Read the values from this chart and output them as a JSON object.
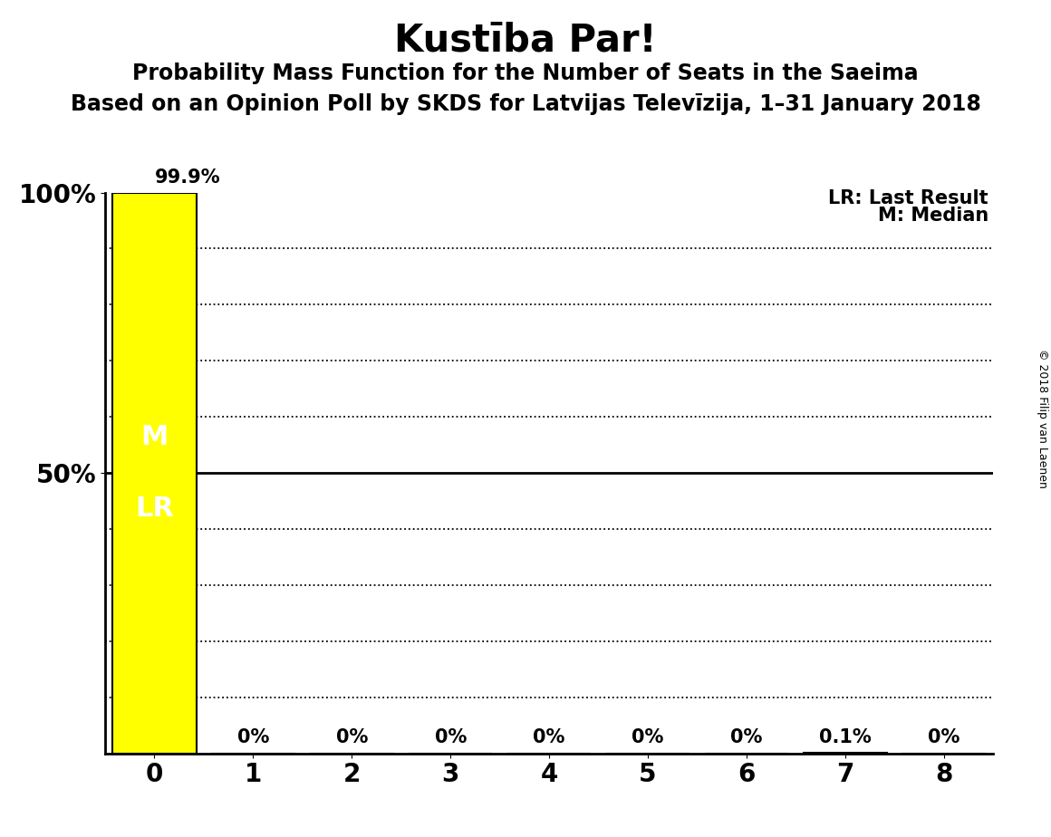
{
  "title": "Kustība Par!",
  "subtitle1": "Probability Mass Function for the Number of Seats in the Saeima",
  "subtitle2": "Based on an Opinion Poll by SKDS for Latvijas Televīzija, 1–31 January 2018",
  "copyright": "© 2018 Filip van Laenen",
  "x_values": [
    0,
    1,
    2,
    3,
    4,
    5,
    6,
    7,
    8
  ],
  "bar_values": [
    0.999,
    0.0,
    0.0,
    0.0,
    0.0,
    0.0,
    0.0,
    0.001,
    0.0
  ],
  "bar_labels": [
    "99.9%",
    "0%",
    "0%",
    "0%",
    "0%",
    "0%",
    "0%",
    "0.1%",
    "0%"
  ],
  "bar_color": "#FFFF00",
  "bar_edge_color": "#000000",
  "median_label": "M",
  "last_result_label": "LR",
  "legend_lr": "LR: Last Result",
  "legend_m": "M: Median",
  "ylim": [
    0,
    1.0
  ],
  "xlim": [
    -0.5,
    8.5
  ],
  "solid_line_y": 0.5,
  "dotted_lines_y": [
    0.1,
    0.2,
    0.3,
    0.4,
    0.6,
    0.7,
    0.8,
    0.9
  ],
  "bar_label_fontsize": 15,
  "title_fontsize": 30,
  "subtitle1_fontsize": 17,
  "subtitle2_fontsize": 17,
  "tick_fontsize": 20,
  "legend_fontsize": 15,
  "ml_fontsize": 22
}
